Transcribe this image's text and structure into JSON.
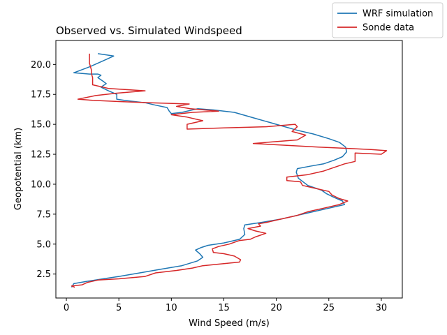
{
  "chart_data": {
    "type": "line",
    "title": "Observed vs. Simulated Windspeed",
    "xlabel": "Wind Speed (m/s)",
    "ylabel": "Geopotential (km)",
    "xlim": [
      -1,
      32
    ],
    "ylim": [
      0.5,
      22
    ],
    "xticks": [
      0,
      5,
      10,
      15,
      20,
      25,
      30
    ],
    "yticks": [
      2.5,
      5.0,
      7.5,
      10.0,
      12.5,
      15.0,
      17.5,
      20.0
    ],
    "ytick_labels": [
      "2.5",
      "5.0",
      "7.5",
      "10.0",
      "12.5",
      "15.0",
      "17.5",
      "20.0"
    ],
    "grid": false,
    "legend_position": "upper-right-outside",
    "series": [
      {
        "name": "WRF simulation",
        "color": "#1f77b4",
        "points": [
          [
            0.5,
            1.4
          ],
          [
            0.7,
            1.7
          ],
          [
            2.0,
            1.9
          ],
          [
            3.5,
            2.1
          ],
          [
            5.0,
            2.3
          ],
          [
            7.0,
            2.6
          ],
          [
            9.0,
            2.9
          ],
          [
            11.0,
            3.2
          ],
          [
            12.5,
            3.6
          ],
          [
            13.0,
            3.9
          ],
          [
            12.7,
            4.2
          ],
          [
            12.3,
            4.5
          ],
          [
            12.8,
            4.7
          ],
          [
            13.5,
            4.9
          ],
          [
            15.0,
            5.1
          ],
          [
            16.5,
            5.4
          ],
          [
            17.0,
            5.8
          ],
          [
            16.9,
            6.3
          ],
          [
            17.0,
            6.6
          ],
          [
            18.5,
            6.8
          ],
          [
            20.5,
            7.1
          ],
          [
            23.0,
            7.6
          ],
          [
            25.0,
            8.0
          ],
          [
            26.5,
            8.3
          ],
          [
            26.3,
            8.6
          ],
          [
            25.5,
            8.9
          ],
          [
            24.8,
            9.2
          ],
          [
            24.3,
            9.5
          ],
          [
            23.0,
            9.9
          ],
          [
            22.1,
            10.5
          ],
          [
            21.9,
            11.0
          ],
          [
            22.0,
            11.3
          ],
          [
            23.2,
            11.5
          ],
          [
            24.5,
            11.7
          ],
          [
            25.5,
            12.0
          ],
          [
            26.3,
            12.3
          ],
          [
            26.7,
            12.7
          ],
          [
            26.6,
            13.1
          ],
          [
            26.0,
            13.5
          ],
          [
            25.0,
            13.8
          ],
          [
            23.5,
            14.2
          ],
          [
            22.0,
            14.5
          ],
          [
            20.0,
            15.0
          ],
          [
            18.0,
            15.5
          ],
          [
            16.0,
            16.0
          ],
          [
            14.0,
            16.2
          ],
          [
            12.5,
            16.3
          ],
          [
            11.0,
            16.0
          ],
          [
            10.0,
            15.9
          ],
          [
            9.8,
            16.1
          ],
          [
            9.6,
            16.4
          ],
          [
            8.5,
            16.6
          ],
          [
            7.5,
            16.8
          ],
          [
            6.5,
            16.9
          ],
          [
            5.5,
            17.0
          ],
          [
            4.8,
            17.1
          ],
          [
            4.8,
            17.5
          ],
          [
            4.0,
            17.8
          ],
          [
            3.3,
            18.1
          ],
          [
            3.8,
            18.4
          ],
          [
            3.5,
            18.6
          ],
          [
            3.0,
            18.9
          ],
          [
            3.3,
            19.1
          ],
          [
            3.0,
            19.2
          ],
          [
            2.2,
            19.2
          ],
          [
            0.7,
            19.3
          ],
          [
            2.2,
            19.8
          ],
          [
            3.5,
            20.3
          ],
          [
            4.5,
            20.7
          ],
          [
            3.8,
            20.8
          ],
          [
            3.0,
            20.9
          ]
        ]
      },
      {
        "name": "Sonde data",
        "color": "#d62728",
        "points": [
          [
            0.8,
            1.4
          ],
          [
            0.5,
            1.5
          ],
          [
            1.5,
            1.6
          ],
          [
            2.0,
            1.8
          ],
          [
            3.0,
            2.0
          ],
          [
            5.0,
            2.1
          ],
          [
            7.5,
            2.3
          ],
          [
            8.5,
            2.6
          ],
          [
            10.5,
            2.8
          ],
          [
            12.0,
            3.0
          ],
          [
            13.0,
            3.2
          ],
          [
            16.5,
            3.5
          ],
          [
            16.6,
            3.7
          ],
          [
            16.0,
            4.0
          ],
          [
            15.0,
            4.2
          ],
          [
            14.0,
            4.3
          ],
          [
            13.9,
            4.6
          ],
          [
            14.5,
            4.8
          ],
          [
            15.5,
            5.0
          ],
          [
            16.5,
            5.3
          ],
          [
            17.5,
            5.4
          ],
          [
            18.0,
            5.6
          ],
          [
            19.0,
            5.9
          ],
          [
            18.0,
            6.1
          ],
          [
            17.3,
            6.3
          ],
          [
            18.5,
            6.5
          ],
          [
            18.3,
            6.7
          ],
          [
            19.0,
            6.8
          ],
          [
            20.0,
            7.0
          ],
          [
            21.0,
            7.2
          ],
          [
            22.0,
            7.4
          ],
          [
            23.0,
            7.7
          ],
          [
            24.5,
            8.0
          ],
          [
            26.0,
            8.3
          ],
          [
            26.8,
            8.6
          ],
          [
            26.0,
            8.8
          ],
          [
            25.3,
            9.1
          ],
          [
            25.0,
            9.4
          ],
          [
            23.5,
            9.7
          ],
          [
            22.5,
            9.9
          ],
          [
            22.3,
            10.2
          ],
          [
            21.0,
            10.3
          ],
          [
            21.0,
            10.6
          ],
          [
            23.0,
            10.8
          ],
          [
            24.5,
            11.1
          ],
          [
            25.5,
            11.4
          ],
          [
            26.5,
            11.7
          ],
          [
            27.5,
            11.9
          ],
          [
            27.5,
            12.3
          ],
          [
            27.5,
            12.6
          ],
          [
            30.0,
            12.5
          ],
          [
            30.5,
            12.8
          ],
          [
            29.0,
            12.9
          ],
          [
            24.0,
            13.1
          ],
          [
            17.8,
            13.4
          ],
          [
            20.5,
            13.6
          ],
          [
            22.0,
            13.7
          ],
          [
            22.8,
            14.1
          ],
          [
            21.5,
            14.4
          ],
          [
            22.0,
            14.8
          ],
          [
            21.8,
            15.0
          ],
          [
            19.0,
            14.8
          ],
          [
            15.0,
            14.7
          ],
          [
            11.5,
            14.6
          ],
          [
            11.5,
            15.0
          ],
          [
            13.0,
            15.3
          ],
          [
            11.5,
            15.6
          ],
          [
            10.0,
            15.8
          ],
          [
            12.0,
            16.0
          ],
          [
            14.5,
            16.1
          ],
          [
            11.8,
            16.3
          ],
          [
            10.5,
            16.5
          ],
          [
            11.7,
            16.7
          ],
          [
            8.0,
            16.8
          ],
          [
            5.0,
            16.9
          ],
          [
            2.5,
            17.0
          ],
          [
            1.1,
            17.1
          ],
          [
            2.8,
            17.4
          ],
          [
            4.8,
            17.6
          ],
          [
            7.5,
            17.8
          ],
          [
            4.0,
            18.0
          ],
          [
            2.5,
            18.3
          ],
          [
            2.5,
            18.6
          ],
          [
            2.5,
            18.9
          ],
          [
            2.4,
            19.2
          ],
          [
            2.4,
            19.5
          ],
          [
            2.3,
            19.8
          ],
          [
            2.2,
            20.1
          ],
          [
            2.2,
            20.4
          ],
          [
            2.2,
            20.6
          ],
          [
            2.2,
            20.9
          ]
        ]
      }
    ]
  }
}
